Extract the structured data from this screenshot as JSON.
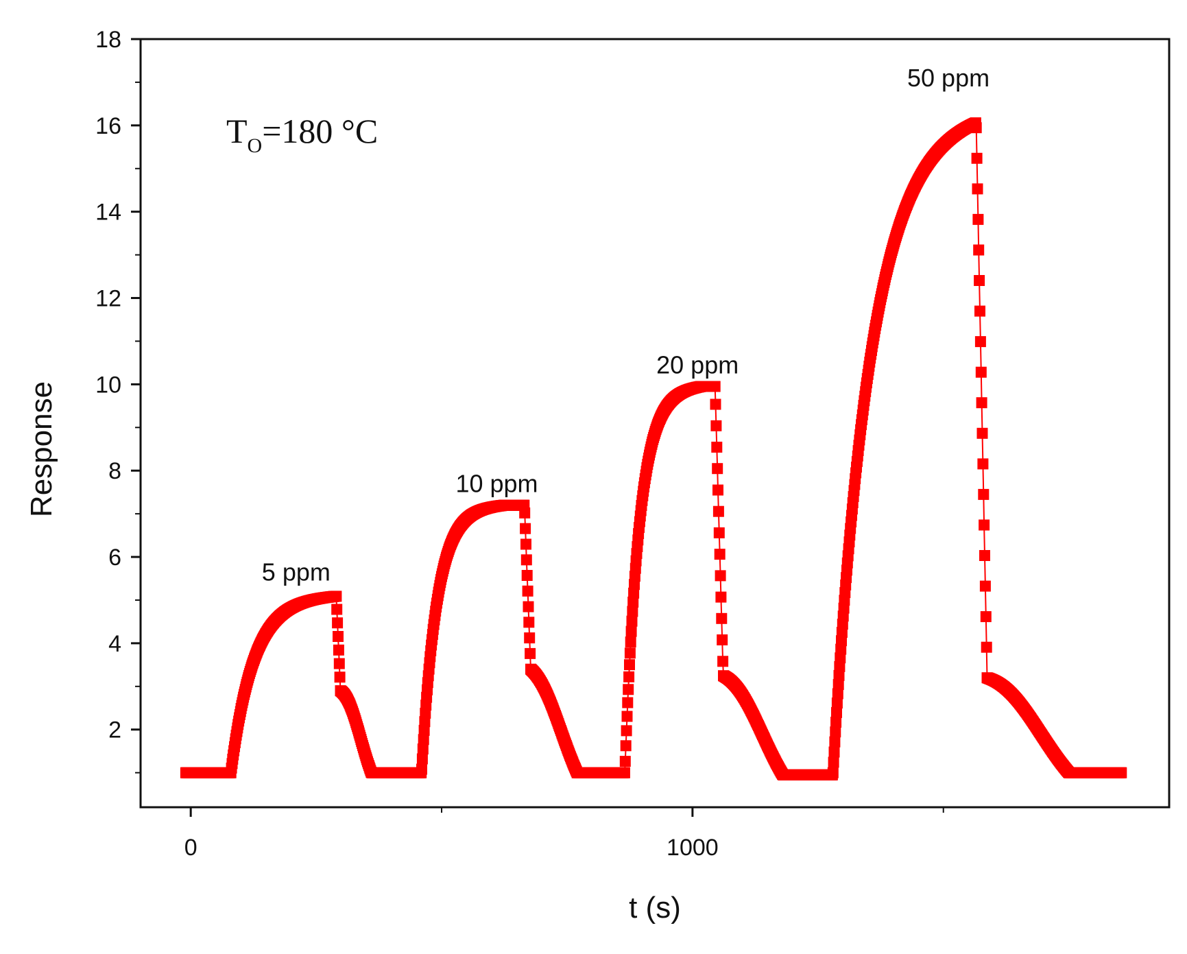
{
  "chart_data": {
    "type": "line",
    "title": "",
    "xlabel": "t (s)",
    "ylabel": "Response",
    "xlim": [
      -100,
      1950
    ],
    "ylim": [
      0.2,
      18
    ],
    "grid": false,
    "legend": "none",
    "x_ticks": [
      0,
      1000
    ],
    "x_minor_ticks": [
      500,
      1500
    ],
    "y_ticks": [
      2,
      4,
      6,
      8,
      10,
      12,
      14,
      16,
      18
    ],
    "condition": {
      "main": "T",
      "sub": "O",
      "rest": "=180 °C"
    },
    "annotations": [
      {
        "text": "5 ppm",
        "x": 210,
        "y": 5.45
      },
      {
        "text": "10 ppm",
        "x": 610,
        "y": 7.5
      },
      {
        "text": "20 ppm",
        "x": 1010,
        "y": 10.25
      },
      {
        "text": "50 ppm",
        "x": 1510,
        "y": 16.9
      }
    ],
    "series": [
      {
        "name": "Response",
        "color": "#ff0000",
        "marker": "square",
        "cycles": [
          {
            "label": "5 ppm",
            "base": 1.0,
            "on": 80,
            "off": 290,
            "plateau": 5.1,
            "tau_rise": 45,
            "fall_step": 2.9,
            "rec_end": 360,
            "hump": 0.45
          },
          {
            "label": "10 ppm",
            "base": 1.0,
            "on": 460,
            "off": 665,
            "plateau": 7.2,
            "tau_rise": 30,
            "fall_step": 3.4,
            "rec_end": 770,
            "hump": 0.45
          },
          {
            "label": "20 ppm",
            "base": 0.95,
            "on": 865,
            "off": 1045,
            "plateau": 9.95,
            "tau_rise": 28,
            "fall_step": 3.3,
            "rec_end": 1180,
            "hump": 0.5
          },
          {
            "label": "50 ppm",
            "base": 1.0,
            "on": 1280,
            "off": 1565,
            "plateau": 16.3,
            "tau_rise": 75,
            "fall_step": 3.2,
            "rec_end": 1750,
            "hump": 0.5
          }
        ],
        "x_start": -10,
        "x_end": 1855
      }
    ]
  }
}
